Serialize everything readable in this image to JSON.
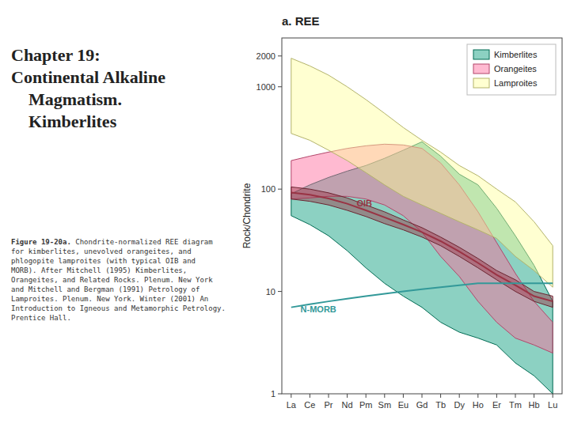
{
  "chart_data": {
    "type": "area_range",
    "title": "Chapter 19:\nContinental Alkaline\n    Magmatism.\n    Kimberlites",
    "subtitle": "a.  REE",
    "caption": [
      "Figure 19-20a.",
      " Chondrite-normalized REE diagram\nfor kimberlites, unevolved orangeites, and\nphlogopite lamproites (with typical OIB and\nMORB). After Mitchell (1995) Kimberlites,\nOrangeites, and Related Rocks. Plenum. New York\nand Mitchell and Bergman (1991) Petrology of\nLamproites. Plenum. New York. Winter (2001) An\nIntroduction to Igneous and Metamorphic Petrology.\nPrentice Hall."
    ],
    "y_label": "Rock/Chondrite",
    "categories": [
      "La",
      "Ce",
      "Pr",
      "Nd",
      "Pm",
      "Sm",
      "Eu",
      "Gd",
      "Tb",
      "Dy",
      "Ho",
      "Er",
      "Tm",
      "Hb",
      "Lu"
    ],
    "log": "y",
    "ylim": [
      1,
      3000
    ],
    "yticks": [
      1,
      10,
      100,
      1000,
      2000
    ],
    "grid": false,
    "legend": "upper right",
    "series": [
      {
        "name": "Kimberlites",
        "type": "area_range",
        "color": "#009977",
        "upper": [
          90,
          110,
          130,
          150,
          170,
          200,
          240,
          290,
          210,
          140,
          110,
          65,
          35,
          18,
          8
        ],
        "lower": [
          55,
          45,
          35,
          25,
          17,
          12,
          9,
          7,
          5,
          4,
          3.5,
          3,
          2,
          1.5,
          1
        ]
      },
      {
        "name": "Orangeites",
        "type": "area_range",
        "color": "#ff6699",
        "upper": [
          190,
          210,
          230,
          250,
          265,
          275,
          270,
          250,
          180,
          110,
          60,
          30,
          15,
          8,
          5
        ],
        "lower": [
          80,
          82,
          85,
          85,
          80,
          70,
          55,
          38,
          22,
          14,
          8,
          5,
          3.5,
          3,
          2.5
        ]
      },
      {
        "name": "Lamproites",
        "type": "area_range",
        "color": "#ffff99",
        "upper": [
          1900,
          1600,
          1300,
          1000,
          750,
          550,
          400,
          300,
          230,
          170,
          135,
          100,
          75,
          48,
          28
        ],
        "lower": [
          350,
          300,
          240,
          190,
          145,
          110,
          85,
          70,
          58,
          48,
          40,
          33,
          22,
          16,
          11
        ]
      },
      {
        "type": "area_range",
        "color": "#993344",
        "upper": [
          105,
          100,
          92,
          82,
          70,
          60,
          50,
          42,
          34,
          27,
          21,
          16,
          13,
          10,
          9
        ],
        "lower": [
          80,
          76,
          70,
          62,
          54,
          46,
          40,
          34,
          28,
          22,
          17,
          13,
          10,
          8,
          7
        ],
        "values": [
          92.5,
          88,
          81,
          72,
          62,
          53,
          45,
          38,
          31,
          24.5,
          19,
          14.5,
          11.5,
          9,
          8
        ]
      },
      {
        "type": "line",
        "color": "#339999",
        "values": [
          7,
          7.5,
          8,
          8.5,
          9,
          9.5,
          10,
          10.5,
          11,
          11.5,
          12,
          12,
          12,
          12,
          12
        ]
      }
    ],
    "annotations": [
      {
        "text": "OIB",
        "x": 3.5,
        "y": 68,
        "color": "#993344"
      },
      {
        "text": "N-MORB",
        "x": 0.5,
        "y": 6.2,
        "color": "#339999"
      }
    ]
  }
}
